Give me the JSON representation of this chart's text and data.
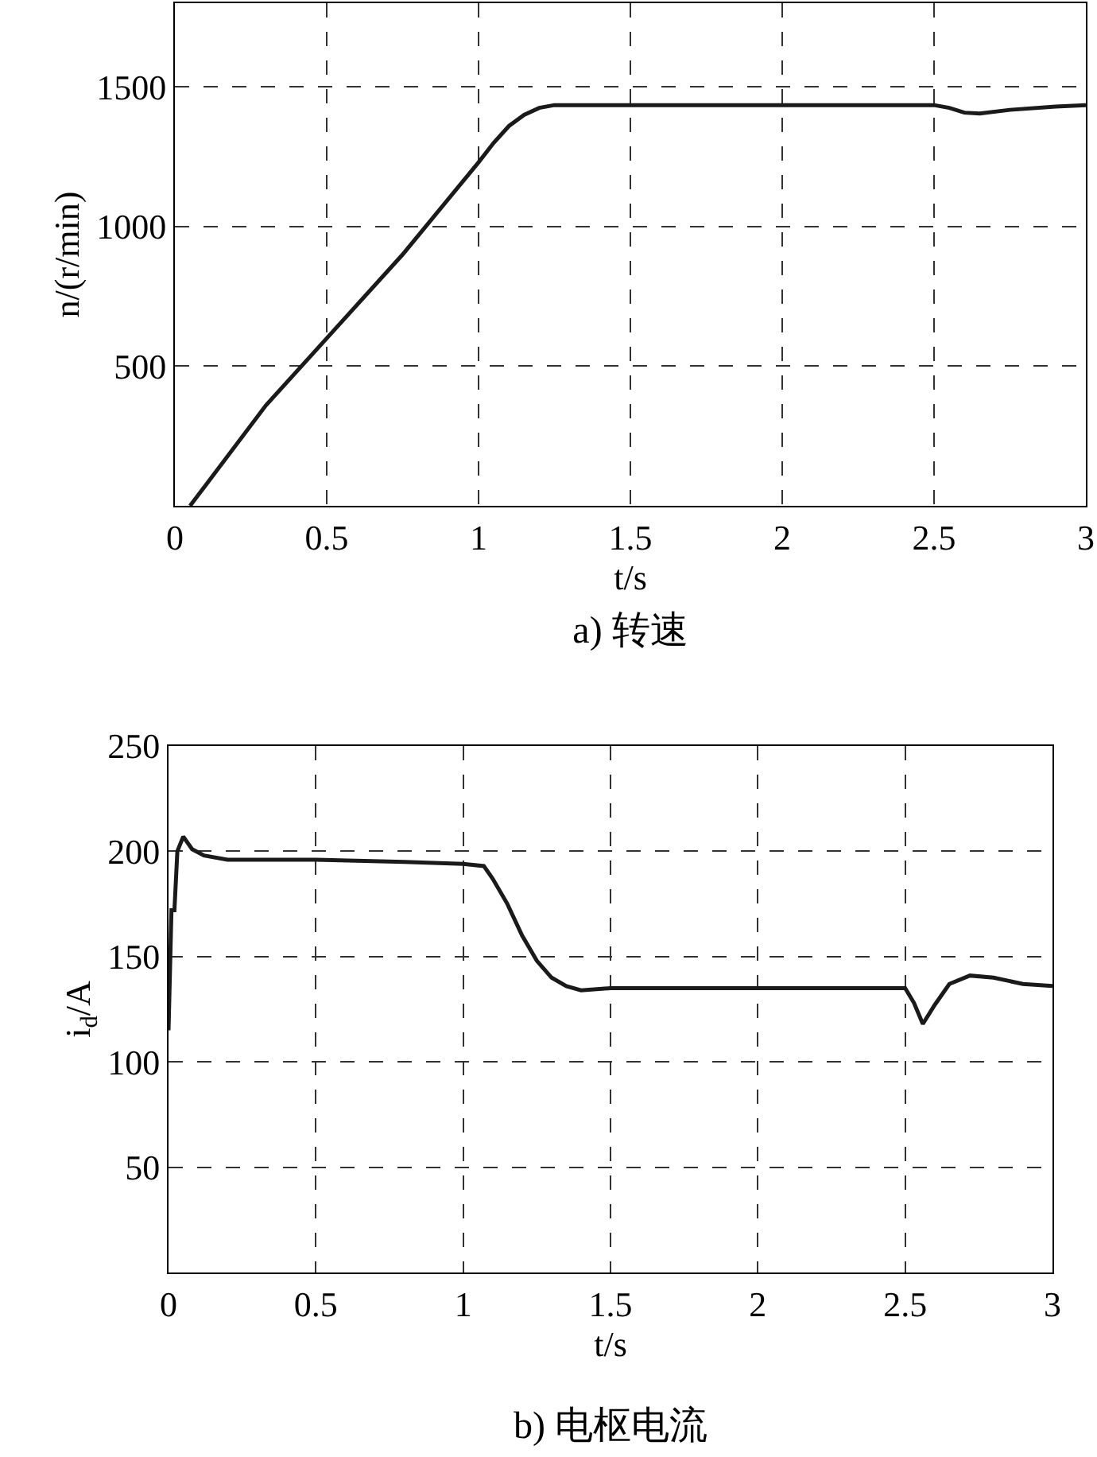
{
  "chart_data": [
    {
      "type": "line",
      "title": "a) 转速",
      "xlabel": "t/s",
      "ylabel": "n/(r/min)",
      "xlim": [
        0,
        3
      ],
      "xticks": [
        0,
        0.5,
        1,
        1.5,
        2,
        2.5,
        3
      ],
      "ylim": [
        0,
        1800
      ],
      "yticks": [
        {
          "value": 0,
          "label": null
        },
        500,
        1000,
        1500
      ],
      "grid": true,
      "line_style": "solid",
      "series": [
        {
          "color": "#1a1a1a",
          "x": [
            0.05,
            0.3,
            0.5,
            0.75,
            1.0,
            1.05,
            1.1,
            1.15,
            1.2,
            1.25,
            1.5,
            2.0,
            2.5,
            2.55,
            2.6,
            2.65,
            2.75,
            2.9,
            3.0
          ],
          "values": [
            0,
            360,
            600,
            900,
            1230,
            1300,
            1360,
            1400,
            1425,
            1435,
            1435,
            1435,
            1435,
            1425,
            1408,
            1405,
            1418,
            1430,
            1435
          ]
        }
      ]
    },
    {
      "type": "line",
      "title": "b) 电枢电流",
      "xlabel": "t/s",
      "ylabel": "i$_{d}$/A",
      "xlim": [
        0,
        3
      ],
      "xticks": [
        0,
        0.5,
        1,
        1.5,
        2,
        2.5,
        3
      ],
      "ylim": [
        0,
        250
      ],
      "yticks": [
        {
          "value": 0,
          "label": null
        },
        50,
        100,
        150,
        200,
        250
      ],
      "grid": true,
      "line_style": "solid",
      "series": [
        {
          "color": "#1a1a1a",
          "x": [
            0,
            0.01,
            0.02,
            0.03,
            0.05,
            0.08,
            0.12,
            0.2,
            0.5,
            0.8,
            1.0,
            1.07,
            1.1,
            1.15,
            1.2,
            1.25,
            1.3,
            1.35,
            1.4,
            1.5,
            2.0,
            2.5,
            2.53,
            2.56,
            2.6,
            2.65,
            2.72,
            2.8,
            2.9,
            3.0
          ],
          "values": [
            115,
            172,
            172,
            200,
            207,
            201,
            198,
            196,
            196,
            195,
            194,
            193,
            187,
            175,
            160,
            148,
            140,
            136,
            134,
            135,
            135,
            135,
            128,
            118,
            127,
            137,
            141,
            140,
            137,
            136
          ]
        }
      ]
    }
  ]
}
